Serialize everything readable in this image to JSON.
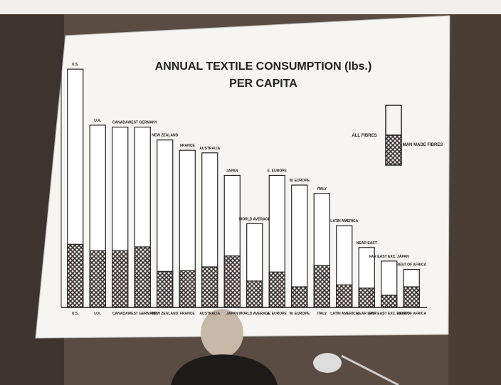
{
  "chart_data": {
    "type": "bar",
    "title": "ANNUAL TEXTILE CONSUMPTION (lbs.)",
    "subtitle": "PER CAPITA",
    "categories": [
      "U.S.",
      "U.K.",
      "CANADA",
      "WEST GERMANY",
      "NEW ZEALAND",
      "FRANCE",
      "AUSTRALIA",
      "JAPAN",
      "WORLD AVERAGE",
      "E. EUROPE",
      "W. EUROPE",
      "ITALY",
      "LATIN AMERICA",
      "NEAR EAST",
      "FAR EAST EXC. JAPAN",
      "REST OF AFRICA"
    ],
    "series": [
      {
        "name": "ALL FIBRES",
        "color": "#ffffff",
        "values": [
          37,
          28.3,
          28,
          28,
          26,
          24.4,
          24,
          20.5,
          13,
          20.5,
          19,
          17.7,
          12.7,
          9.3,
          7.2,
          5.9
        ]
      },
      {
        "name": "MAN MADE FIBRES",
        "color": "#3a3030",
        "values": [
          9.8,
          8.8,
          8.8,
          9.4,
          5.6,
          5.7,
          6.3,
          8,
          4.1,
          5.5,
          3.2,
          6.5,
          3.5,
          3,
          1.9,
          3.2
        ]
      }
    ],
    "ylim": [
      0,
      40
    ]
  }
}
